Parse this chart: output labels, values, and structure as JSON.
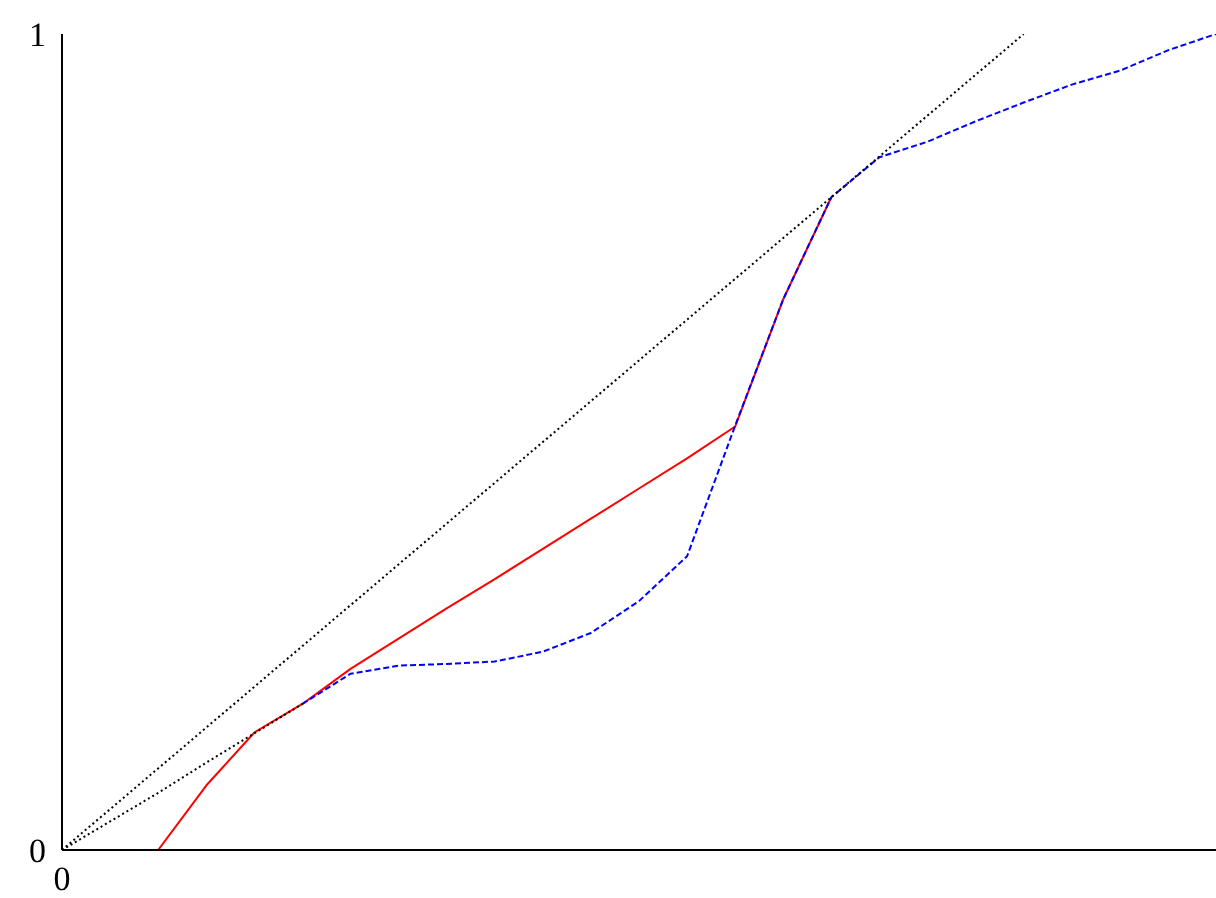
{
  "chart_data": {
    "type": "line",
    "categories": [
      "0",
      null,
      null,
      null,
      null,
      null,
      null,
      null,
      null,
      null,
      null,
      null,
      null,
      null,
      null,
      null,
      null,
      null,
      null,
      null,
      null,
      null,
      null,
      null,
      null
    ],
    "ylim": [
      0,
      1
    ],
    "yticks": [
      0,
      1
    ],
    "marker": "none",
    "series": [
      {
        "color": "#000000",
        "line_style": "dotted",
        "values": [
          0,
          0.05,
          0.1,
          0.15,
          0.2,
          0.25,
          0.3,
          0.35,
          0.4,
          0.45,
          0.5,
          0.55,
          0.6,
          0.65,
          0.7,
          0.75,
          0.8,
          0.85,
          0.9,
          0.95,
          1,
          null,
          null,
          null,
          null
        ]
      },
      {
        "color": "#000000",
        "line_style": "dotted",
        "values": [
          0,
          0.035,
          0.07,
          0.107,
          0.143,
          0.179,
          null,
          null,
          null,
          null,
          null,
          null,
          null,
          null,
          null,
          null,
          null,
          null,
          null,
          null,
          null,
          null,
          null,
          null,
          null
        ]
      },
      {
        "color": "#0000ff",
        "line_style": "dashed",
        "values": [
          null,
          null,
          null,
          null,
          null,
          0.179,
          0.216,
          0.226,
          0.228,
          0.231,
          0.243,
          0.266,
          0.305,
          0.36,
          0.52,
          0.675,
          0.8,
          0.849,
          0.868,
          0.893,
          0.916,
          0.938,
          0.955,
          0.98,
          1
        ]
      },
      {
        "color": "#ff0000",
        "line_style": "solid",
        "values": [
          null,
          null,
          0,
          0.079,
          0.144,
          0.179,
          0.222,
          0.259,
          0.296,
          0.332,
          0.369,
          0.406,
          0.443,
          0.48,
          0.519,
          0.675,
          0.8,
          null,
          null,
          null,
          null,
          null,
          null,
          null,
          null
        ]
      }
    ]
  }
}
